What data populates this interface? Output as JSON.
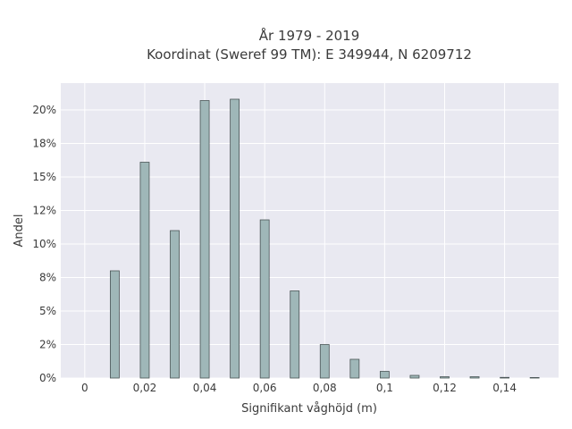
{
  "chart_data": {
    "type": "bar",
    "title": "År 1979 - 2019",
    "subtitle": "Koordinat (Sweref 99 TM): E 349944, N 6209712",
    "xlabel": "Signifikant våghöjd (m)",
    "ylabel": "Andel",
    "x": [
      0.01,
      0.02,
      0.03,
      0.04,
      0.05,
      0.06,
      0.07,
      0.08,
      0.09,
      0.1,
      0.11,
      0.12,
      0.13,
      0.14,
      0.15
    ],
    "values": [
      0.08,
      0.161,
      0.11,
      0.207,
      0.208,
      0.118,
      0.065,
      0.025,
      0.014,
      0.005,
      0.002,
      0.001,
      0.001,
      0.0005,
      0.0004
    ],
    "xlim": [
      -0.008,
      0.158
    ],
    "ylim": [
      0,
      0.22
    ],
    "xticks": [
      0,
      0.02,
      0.04,
      0.06,
      0.08,
      0.1,
      0.12,
      0.14
    ],
    "xtick_labels": [
      "0",
      "0,02",
      "0,04",
      "0,06",
      "0,08",
      "0,1",
      "0,12",
      "0,14"
    ],
    "yticks": [
      0,
      0.025,
      0.05,
      0.075,
      0.1,
      0.125,
      0.15,
      0.175,
      0.2
    ],
    "ytick_labels": [
      "0%",
      "2%",
      "5%",
      "8%",
      "10%",
      "12%",
      "15%",
      "18%",
      "20%"
    ],
    "grid": true,
    "colors": {
      "bar_fill": "#9fb7b8",
      "bar_edge": "#4a5556",
      "plot_bg": "#e9e9f1",
      "grid": "#ffffff"
    }
  }
}
